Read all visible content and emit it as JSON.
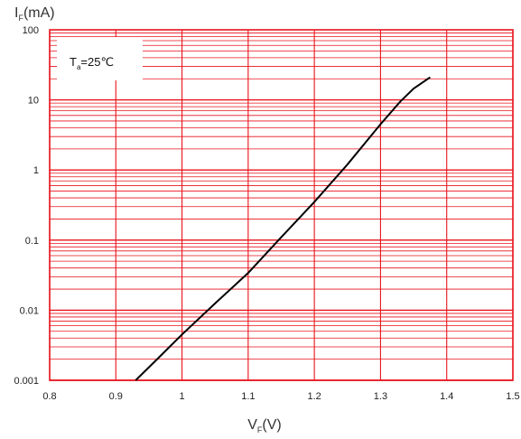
{
  "chart_data": {
    "type": "line",
    "ylabel": {
      "main": "I",
      "sub": "F",
      "unit": "(mA)"
    },
    "xlabel": {
      "main": "V",
      "sub": "F",
      "unit": "(V)"
    },
    "annotation": {
      "main": "T",
      "sub": "a",
      "rest": "=25℃"
    },
    "xlim": [
      0.8,
      1.5
    ],
    "ylim": [
      0.001,
      100
    ],
    "y_scale": "log",
    "grid": true,
    "grid_color": "#e8131b",
    "line_color": "#000000",
    "x_ticks": [
      "0.8",
      "0.9",
      "1",
      "1.1",
      "1.2",
      "1.3",
      "1.4",
      "1.5"
    ],
    "y_ticks": [
      "0.001",
      "0.01",
      "0.1",
      "1",
      "10",
      "100"
    ],
    "series": [
      {
        "x": [
          0.93,
          0.96,
          1.0,
          1.05,
          1.1,
          1.15,
          1.2,
          1.25,
          1.3,
          1.33,
          1.35,
          1.375
        ],
        "y": [
          0.001,
          0.0019,
          0.0045,
          0.0125,
          0.034,
          0.11,
          0.35,
          1.2,
          4.5,
          9.5,
          14.5,
          21
        ]
      }
    ]
  }
}
